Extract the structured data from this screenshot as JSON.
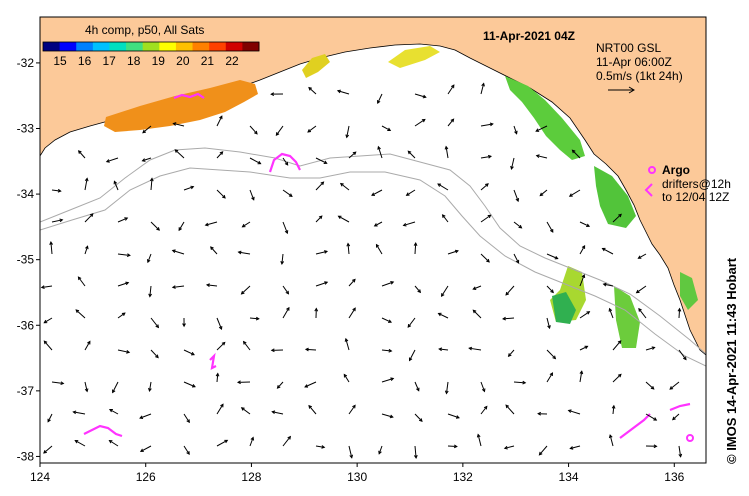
{
  "map": {
    "title": "11-Apr-2021 04Z",
    "legend_title": "4h comp, p50, All Sats",
    "colorbar_ticks": [
      "15",
      "16",
      "17",
      "18",
      "19",
      "20",
      "21",
      "22"
    ],
    "colorbar_colors": [
      "#000080",
      "#0000ff",
      "#0080ff",
      "#00c0ff",
      "#00e0c0",
      "#40e080",
      "#a0e020",
      "#ffff00",
      "#ffc000",
      "#ff8000",
      "#ff4000",
      "#d00000",
      "#800000"
    ],
    "product_info": {
      "line1": "NRT00 GSL",
      "line2": "11-Apr 06:00Z",
      "line3": "0.5m/s (1kt 24h)"
    },
    "argo": {
      "label": "Argo",
      "line2": "drifters@12h",
      "line3": "to 12/04 12Z"
    },
    "credit": "© IMOS 14-Apr-2021 11:43 Hobart",
    "x_ticks": [
      "124",
      "126",
      "128",
      "130",
      "132",
      "134",
      "136"
    ],
    "y_ticks": [
      "-32",
      "-33",
      "-34",
      "-35",
      "-36",
      "-37",
      "-38"
    ],
    "lon_range": [
      124,
      136.6
    ],
    "lat_range": [
      -38.1,
      -31.3
    ],
    "colors": {
      "land": "#fcc999",
      "ocean": "#ffffff",
      "drifter": "#ff33ff",
      "isobath": "#aaaaaa",
      "arrow": "#000000"
    }
  }
}
